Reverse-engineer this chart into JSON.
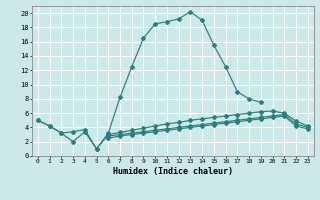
{
  "xlabel": "Humidex (Indice chaleur)",
  "bg_color": "#cde8e8",
  "grid_color": "#ffffff",
  "line_color": "#2e7d7d",
  "xlim": [
    -0.5,
    23.5
  ],
  "ylim": [
    0,
    21
  ],
  "xticks": [
    0,
    1,
    2,
    3,
    4,
    5,
    6,
    7,
    8,
    9,
    10,
    11,
    12,
    13,
    14,
    15,
    16,
    17,
    18,
    19,
    20,
    21,
    22,
    23
  ],
  "yticks": [
    0,
    2,
    4,
    6,
    8,
    10,
    12,
    14,
    16,
    18,
    20
  ],
  "s1x": [
    0,
    1,
    2,
    3,
    4,
    5,
    6,
    7,
    8,
    9,
    10,
    11,
    12,
    13,
    14,
    15,
    16,
    17,
    18,
    19
  ],
  "s1y": [
    5.0,
    4.2,
    3.2,
    3.4,
    3.7,
    1.0,
    3.2,
    8.2,
    12.5,
    16.5,
    18.5,
    18.8,
    19.2,
    20.2,
    19.0,
    15.5,
    12.5,
    9.0,
    8.0,
    7.5
  ],
  "s2x": [
    0,
    1,
    2,
    3,
    4,
    5,
    6,
    7,
    8,
    9,
    10,
    11,
    12,
    13,
    14,
    15,
    16,
    17,
    18,
    19,
    20,
    21,
    22,
    23
  ],
  "s2y": [
    5.0,
    4.2,
    3.2,
    2.0,
    3.4,
    1.0,
    3.0,
    3.3,
    3.6,
    3.9,
    4.2,
    4.5,
    4.7,
    5.0,
    5.2,
    5.4,
    5.6,
    5.8,
    6.0,
    6.2,
    6.3,
    6.0,
    4.9,
    4.2
  ],
  "s3x": [
    6,
    7,
    8,
    9,
    10,
    11,
    12,
    13,
    14,
    15,
    16,
    17,
    18,
    19,
    20,
    21,
    22,
    23
  ],
  "s3y": [
    2.8,
    3.0,
    3.2,
    3.4,
    3.6,
    3.8,
    4.0,
    4.2,
    4.4,
    4.6,
    4.8,
    5.0,
    5.2,
    5.4,
    5.6,
    5.8,
    4.5,
    4.0
  ],
  "s4x": [
    6,
    7,
    8,
    9,
    10,
    11,
    12,
    13,
    14,
    15,
    16,
    17,
    18,
    19,
    20,
    21,
    22,
    23
  ],
  "s4y": [
    2.5,
    2.8,
    3.0,
    3.2,
    3.4,
    3.6,
    3.8,
    4.0,
    4.2,
    4.4,
    4.6,
    4.8,
    5.0,
    5.2,
    5.4,
    5.6,
    4.2,
    3.8
  ]
}
